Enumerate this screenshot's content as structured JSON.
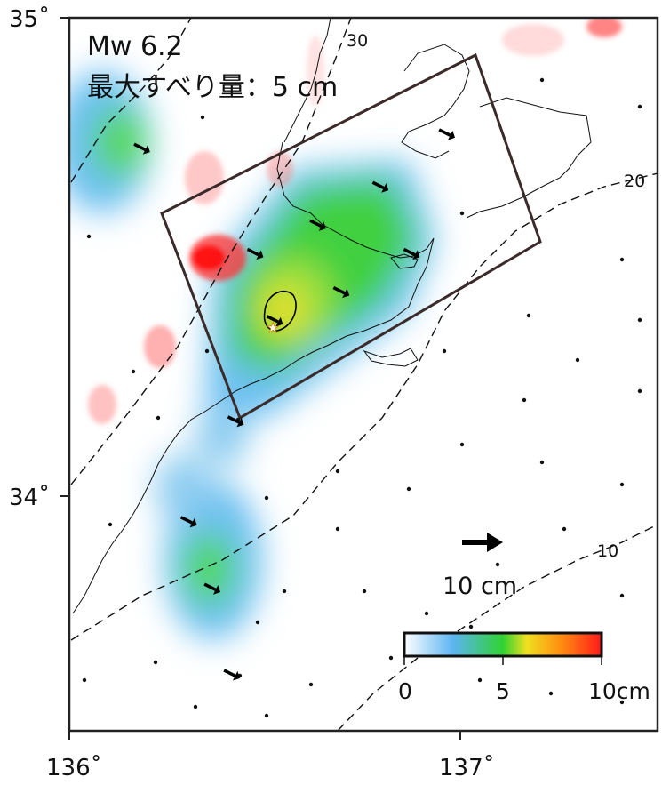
{
  "info": {
    "magnitude": "Mw 6.2",
    "max_slip": "最大すべり量：5 cm"
  },
  "axes": {
    "lat_labels": [
      "35˚",
      "34˚"
    ],
    "lon_labels": [
      "136˚",
      "137˚"
    ]
  },
  "contours": {
    "labels": [
      "30",
      "20",
      "10"
    ]
  },
  "scale_arrow": {
    "label": "10 cm",
    "value_cm": 10
  },
  "colorbar": {
    "tick_labels": [
      "0",
      "5",
      "10cm"
    ],
    "min": 0,
    "max": 10,
    "colors": [
      "#ffffff",
      "#5ab4f0",
      "#30d230",
      "#f0e020",
      "#ff2020"
    ]
  },
  "slip_arrows": [
    {
      "lon": 136.18,
      "lat": 34.73,
      "dx": 1,
      "dy": 0.5
    },
    {
      "lon": 136.47,
      "lat": 34.51,
      "dx": 1,
      "dy": 0.5
    },
    {
      "lon": 136.63,
      "lat": 34.57,
      "dx": 1,
      "dy": 0.5
    },
    {
      "lon": 136.79,
      "lat": 34.65,
      "dx": 1,
      "dy": 0.5
    },
    {
      "lon": 136.87,
      "lat": 34.51,
      "dx": 1,
      "dy": 0.5
    },
    {
      "lon": 136.69,
      "lat": 34.43,
      "dx": 1,
      "dy": 0.5
    },
    {
      "lon": 136.52,
      "lat": 34.37,
      "dx": 1,
      "dy": 0.5
    },
    {
      "lon": 136.42,
      "lat": 34.16,
      "dx": 1,
      "dy": 0.5
    },
    {
      "lon": 136.3,
      "lat": 33.95,
      "dx": 1,
      "dy": 0.5
    },
    {
      "lon": 136.36,
      "lat": 33.81,
      "dx": 1,
      "dy": 0.5
    },
    {
      "lon": 136.41,
      "lat": 33.63,
      "dx": 1,
      "dy": 0.5
    },
    {
      "lon": 136.96,
      "lat": 34.76,
      "dx": 1,
      "dy": 0.5
    }
  ],
  "colors": {
    "frame": "#222222",
    "fault": "#3a2a2a",
    "epicenter": "#ff3030",
    "coast": "#111111"
  }
}
